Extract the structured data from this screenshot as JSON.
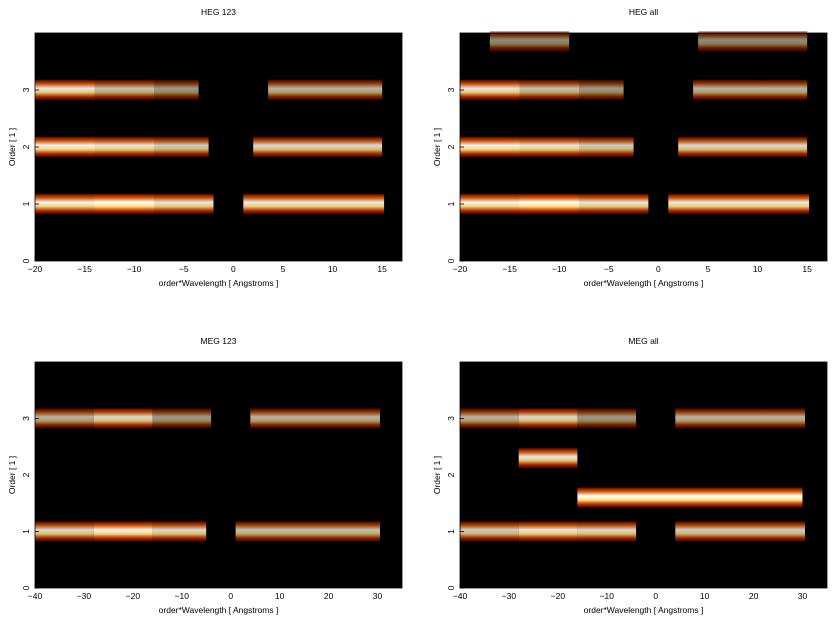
{
  "colors": {
    "background": "#000000",
    "colormap": [
      "#000000",
      "#5a0000",
      "#a01800",
      "#d85a00",
      "#f0a020",
      "#ffe080",
      "#ffffff"
    ]
  },
  "chart_data": [
    {
      "type": "heatmap",
      "title": "HEG 123",
      "xlabel": "order*Wavelength [ Angstroms ]",
      "ylabel": "Order [ 1 ]",
      "xlim": [
        -20,
        17
      ],
      "ylim": [
        0,
        4
      ],
      "xticks": [
        -20,
        -15,
        -10,
        -5,
        0,
        5,
        10,
        15
      ],
      "yticks": [
        0,
        1,
        2,
        3
      ],
      "bands": [
        {
          "order": 1,
          "x": [
            -20,
            -14
          ],
          "intensity": 0.95
        },
        {
          "order": 1,
          "x": [
            -14,
            -8
          ],
          "intensity": 1.0
        },
        {
          "order": 1,
          "x": [
            -8,
            -2
          ],
          "intensity": 0.9
        },
        {
          "order": 1,
          "x": [
            1,
            15.2
          ],
          "intensity": 0.92
        },
        {
          "order": 2,
          "x": [
            -20,
            -14
          ],
          "intensity": 0.95
        },
        {
          "order": 2,
          "x": [
            -14,
            -8
          ],
          "intensity": 0.9
        },
        {
          "order": 2,
          "x": [
            -8,
            -2.5
          ],
          "intensity": 0.8
        },
        {
          "order": 2,
          "x": [
            2,
            15
          ],
          "intensity": 0.85
        },
        {
          "order": 3,
          "x": [
            -20,
            -14
          ],
          "intensity": 0.9
        },
        {
          "order": 3,
          "x": [
            -14,
            -8
          ],
          "intensity": 0.75
        },
        {
          "order": 3,
          "x": [
            -8,
            -3.5
          ],
          "intensity": 0.6
        },
        {
          "order": 3,
          "x": [
            3.5,
            15
          ],
          "intensity": 0.7
        }
      ]
    },
    {
      "type": "heatmap",
      "title": "HEG all",
      "xlabel": "order*Wavelength [ Angstroms ]",
      "ylabel": "Order [ 1 ]",
      "xlim": [
        -20,
        17
      ],
      "ylim": [
        0,
        4
      ],
      "xticks": [
        -20,
        -15,
        -10,
        -5,
        0,
        5,
        10,
        15
      ],
      "yticks": [
        0,
        1,
        2,
        3
      ],
      "bands": [
        {
          "order": 1,
          "x": [
            -20,
            -14
          ],
          "intensity": 0.95
        },
        {
          "order": 1,
          "x": [
            -14,
            -8
          ],
          "intensity": 1.0
        },
        {
          "order": 1,
          "x": [
            -8,
            -1
          ],
          "intensity": 0.9
        },
        {
          "order": 1,
          "x": [
            1,
            15.2
          ],
          "intensity": 0.92
        },
        {
          "order": 2,
          "x": [
            -20,
            -14
          ],
          "intensity": 0.95
        },
        {
          "order": 2,
          "x": [
            -14,
            -8
          ],
          "intensity": 0.9
        },
        {
          "order": 2,
          "x": [
            -8,
            -2.5
          ],
          "intensity": 0.8
        },
        {
          "order": 2,
          "x": [
            2,
            15
          ],
          "intensity": 0.85
        },
        {
          "order": 3,
          "x": [
            -20,
            -14
          ],
          "intensity": 0.9
        },
        {
          "order": 3,
          "x": [
            -14,
            -8
          ],
          "intensity": 0.75
        },
        {
          "order": 3,
          "x": [
            -8,
            -3.5
          ],
          "intensity": 0.6
        },
        {
          "order": 3,
          "x": [
            3.5,
            15
          ],
          "intensity": 0.7
        },
        {
          "order": 3.85,
          "x": [
            -17,
            -9
          ],
          "intensity": 0.55
        },
        {
          "order": 3.85,
          "x": [
            4,
            15
          ],
          "intensity": 0.55
        }
      ]
    },
    {
      "type": "heatmap",
      "title": "MEG 123",
      "xlabel": "order*Wavelength [ Angstroms ]",
      "ylabel": "Order [ 1 ]",
      "xlim": [
        -40,
        35
      ],
      "ylim": [
        0,
        4
      ],
      "xticks": [
        -40,
        -30,
        -20,
        -10,
        0,
        10,
        20,
        30
      ],
      "yticks": [
        0,
        1,
        2,
        3
      ],
      "bands": [
        {
          "order": 1,
          "x": [
            -40,
            -28
          ],
          "intensity": 0.85
        },
        {
          "order": 1,
          "x": [
            -28,
            -16
          ],
          "intensity": 0.95
        },
        {
          "order": 1,
          "x": [
            -16,
            -5
          ],
          "intensity": 0.85
        },
        {
          "order": 1,
          "x": [
            1,
            30.5
          ],
          "intensity": 0.75
        },
        {
          "order": 3,
          "x": [
            -40,
            -28
          ],
          "intensity": 0.7
        },
        {
          "order": 3,
          "x": [
            -28,
            -16
          ],
          "intensity": 0.85
        },
        {
          "order": 3,
          "x": [
            -16,
            -4
          ],
          "intensity": 0.6
        },
        {
          "order": 3,
          "x": [
            4,
            30.5
          ],
          "intensity": 0.7
        }
      ]
    },
    {
      "type": "heatmap",
      "title": "MEG all",
      "xlabel": "order*Wavelength [ Angstroms ]",
      "ylabel": "Order [ 1 ]",
      "xlim": [
        -40,
        35
      ],
      "ylim": [
        0,
        4
      ],
      "xticks": [
        -40,
        -30,
        -20,
        -10,
        0,
        10,
        20,
        30
      ],
      "yticks": [
        0,
        1,
        2,
        3
      ],
      "bands": [
        {
          "order": 1,
          "x": [
            -40,
            -28
          ],
          "intensity": 0.8
        },
        {
          "order": 1,
          "x": [
            -28,
            -16
          ],
          "intensity": 0.9
        },
        {
          "order": 1,
          "x": [
            -16,
            -4
          ],
          "intensity": 0.85
        },
        {
          "order": 1,
          "x": [
            4,
            30.5
          ],
          "intensity": 0.8
        },
        {
          "order": 1.6,
          "x": [
            -16,
            30
          ],
          "intensity": 1.0
        },
        {
          "order": 2.3,
          "x": [
            -28,
            -16
          ],
          "intensity": 0.9
        },
        {
          "order": 3,
          "x": [
            -40,
            -28
          ],
          "intensity": 0.7
        },
        {
          "order": 3,
          "x": [
            -28,
            -16
          ],
          "intensity": 0.85
        },
        {
          "order": 3,
          "x": [
            -16,
            -4
          ],
          "intensity": 0.6
        },
        {
          "order": 3,
          "x": [
            4,
            30.5
          ],
          "intensity": 0.7
        }
      ]
    }
  ]
}
